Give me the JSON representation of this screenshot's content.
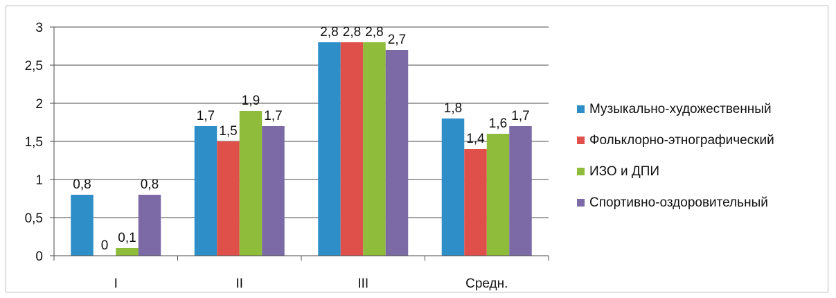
{
  "chart_data": {
    "type": "bar",
    "categories": [
      "I",
      "II",
      "III",
      "Средн."
    ],
    "series": [
      {
        "name": "Музыкально-художественный",
        "values": [
          0.8,
          1.7,
          2.8,
          1.8
        ],
        "labels": [
          "0,8",
          "1,7",
          "2,8",
          "1,8"
        ],
        "color": "#2e8ec7"
      },
      {
        "name": "Фольклорно-этнографический",
        "values": [
          0,
          1.5,
          2.8,
          1.4
        ],
        "labels": [
          "0",
          "1,5",
          "2,8",
          "1,4"
        ],
        "color": "#e0504b"
      },
      {
        "name": "ИЗО и ДПИ",
        "values": [
          0.1,
          1.9,
          2.8,
          1.6
        ],
        "labels": [
          "0,1",
          "1,9",
          "2,8",
          "1,6"
        ],
        "color": "#8fbc3a"
      },
      {
        "name": "Спортивно-оздоровительный",
        "values": [
          0.8,
          1.7,
          2.7,
          1.7
        ],
        "labels": [
          "0,8",
          "1,7",
          "2,7",
          "1,7"
        ],
        "color": "#7b6aa6"
      }
    ],
    "yticks": [
      "0",
      "0,5",
      "1",
      "1,5",
      "2",
      "2,5",
      "3"
    ],
    "ytick_values": [
      0,
      0.5,
      1,
      1.5,
      2,
      2.5,
      3
    ],
    "ylim": [
      0,
      3
    ],
    "grid": true,
    "legend_position": "right",
    "title": "",
    "xlabel": "",
    "ylabel": ""
  }
}
